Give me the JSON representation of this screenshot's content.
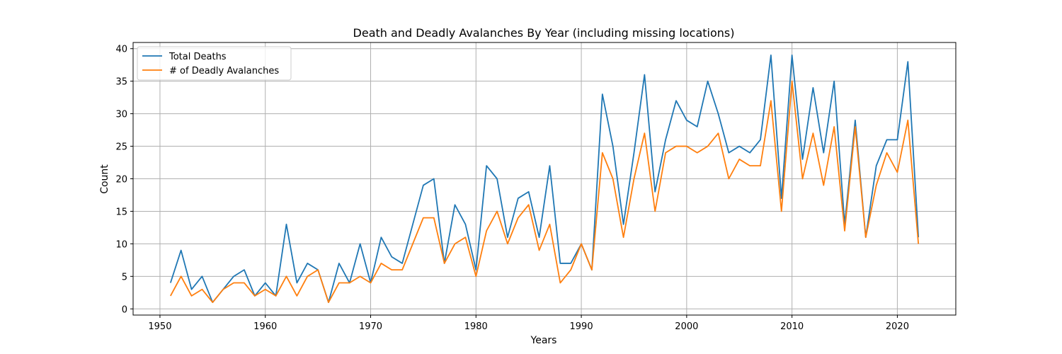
{
  "chart_data": {
    "type": "line",
    "title": "Death and Deadly Avalanches By Year (including missing locations)",
    "xlabel": "Years",
    "ylabel": "Count",
    "xlim": [
      1947.45,
      2025.55
    ],
    "ylim": [
      -0.95,
      40.95
    ],
    "x_ticks": [
      1950,
      1960,
      1970,
      1980,
      1990,
      2000,
      2010,
      2020
    ],
    "y_ticks": [
      0,
      5,
      10,
      15,
      20,
      25,
      30,
      35,
      40
    ],
    "grid": true,
    "legend_position": "upper-left",
    "x": [
      1951,
      1952,
      1953,
      1954,
      1955,
      1956,
      1957,
      1958,
      1959,
      1960,
      1961,
      1962,
      1963,
      1964,
      1965,
      1966,
      1967,
      1968,
      1969,
      1970,
      1971,
      1972,
      1973,
      1974,
      1975,
      1976,
      1977,
      1978,
      1979,
      1980,
      1981,
      1982,
      1983,
      1984,
      1985,
      1986,
      1987,
      1988,
      1989,
      1990,
      1991,
      1992,
      1993,
      1994,
      1995,
      1996,
      1997,
      1998,
      1999,
      2000,
      2001,
      2002,
      2003,
      2004,
      2005,
      2006,
      2007,
      2008,
      2009,
      2010,
      2011,
      2012,
      2013,
      2014,
      2015,
      2016,
      2017,
      2018,
      2019,
      2020,
      2021,
      2022
    ],
    "series": [
      {
        "name": "Total Deaths",
        "color": "#1f77b4",
        "values": [
          4,
          9,
          3,
          5,
          1,
          3,
          5,
          6,
          2,
          4,
          2,
          13,
          4,
          7,
          6,
          1,
          7,
          4,
          10,
          4,
          11,
          8,
          7,
          13,
          19,
          20,
          7,
          16,
          13,
          6,
          22,
          20,
          11,
          17,
          18,
          11,
          22,
          7,
          7,
          10,
          6,
          33,
          25,
          13,
          24,
          36,
          18,
          26,
          32,
          29,
          28,
          35,
          30,
          24,
          25,
          24,
          26,
          39,
          17,
          39,
          23,
          34,
          24,
          35,
          13,
          29,
          11,
          22,
          26,
          26,
          38,
          11
        ]
      },
      {
        "name": "# of Deadly Avalanches",
        "color": "#ff7f0e",
        "values": [
          2,
          5,
          2,
          3,
          1,
          3,
          4,
          4,
          2,
          3,
          2,
          5,
          2,
          5,
          6,
          1,
          4,
          4,
          5,
          4,
          7,
          6,
          6,
          10,
          14,
          14,
          7,
          10,
          11,
          5,
          12,
          15,
          10,
          14,
          16,
          9,
          13,
          4,
          6,
          10,
          6,
          24,
          20,
          11,
          20,
          27,
          15,
          24,
          25,
          25,
          24,
          25,
          27,
          20,
          23,
          22,
          22,
          32,
          15,
          35,
          20,
          27,
          19,
          28,
          12,
          28,
          11,
          19,
          24,
          21,
          29,
          10
        ]
      }
    ]
  }
}
